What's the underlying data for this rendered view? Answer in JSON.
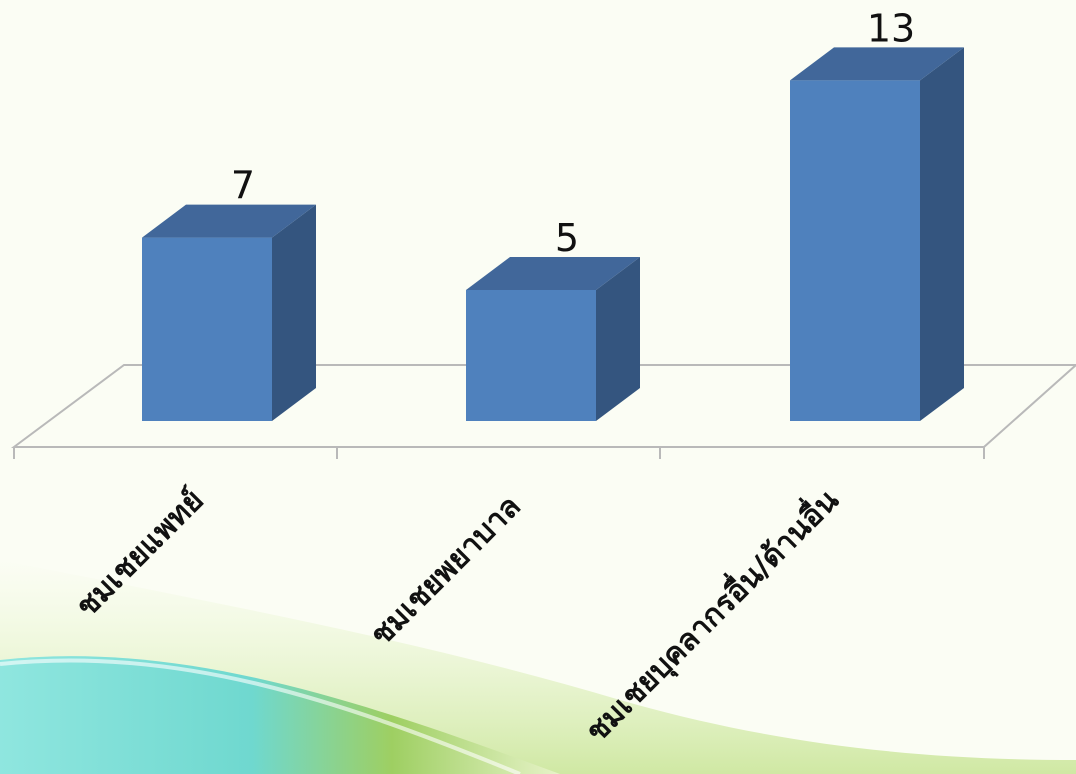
{
  "chart_data": {
    "type": "bar",
    "categories": [
      "ชมเชยแพทย์",
      "ชมเชยพยาบาล",
      "ชมเชยบุคลากรอื่น/ด้านอื่น"
    ],
    "values": [
      7,
      5,
      13
    ],
    "title": "",
    "xlabel": "",
    "ylabel": "",
    "ylim": [
      0,
      13
    ],
    "style": "3d-column",
    "grid": false,
    "legend": "none",
    "data_labels": true
  },
  "colors": {
    "bar_front": "#4f81bd",
    "bar_side": "#34557f",
    "bar_top": "#41679a",
    "floor_line": "#b9b9b9",
    "label_text": "#111111",
    "background": "#fbfdf4"
  }
}
